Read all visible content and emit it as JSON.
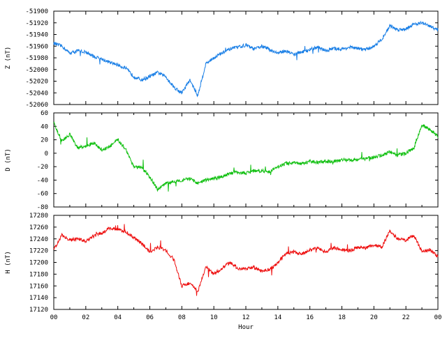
{
  "chart_data": [
    {
      "type": "line",
      "ylabel": "Z (nT)",
      "ylim": [
        -52060,
        -51900
      ],
      "yticks": [
        "-51900",
        "-51920",
        "-51940",
        "-51960",
        "-51980",
        "-52000",
        "-52020",
        "-52040",
        "-52060"
      ],
      "color": "#1a7fe6",
      "series": [
        {
          "x": [
            0,
            0.5,
            1,
            1.5,
            2,
            2.5,
            3,
            3.5,
            4,
            4.5,
            5,
            5.5,
            6,
            6.5,
            7,
            7.5,
            8,
            8.5,
            9,
            9.5,
            10,
            10.5,
            11,
            11.5,
            12,
            12.5,
            13,
            13.5,
            14,
            14.5,
            15,
            15.5,
            16,
            16.5,
            17,
            17.5,
            18,
            18.5,
            19,
            19.5,
            20,
            20.5,
            21,
            21.5,
            22,
            22.5,
            23,
            23.5,
            24
          ],
          "values": [
            -51955,
            -51960,
            -51972,
            -51968,
            -51970,
            -51978,
            -51982,
            -51988,
            -51992,
            -51998,
            -52012,
            -52018,
            -52012,
            -52005,
            -52012,
            -52030,
            -52040,
            -52018,
            -52045,
            -51990,
            -51980,
            -51972,
            -51965,
            -51962,
            -51958,
            -51965,
            -51960,
            -51966,
            -51972,
            -51968,
            -51974,
            -51970,
            -51966,
            -51962,
            -51968,
            -51964,
            -51965,
            -51962,
            -51964,
            -51966,
            -51960,
            -51948,
            -51925,
            -51932,
            -51930,
            -51922,
            -51920,
            -51926,
            -51932
          ]
        }
      ]
    },
    {
      "type": "line",
      "ylabel": "D (nT)",
      "ylim": [
        -80,
        60
      ],
      "yticks": [
        "60",
        "40",
        "20",
        "0",
        "-20",
        "-40",
        "-60",
        "-80"
      ],
      "color": "#12c012",
      "series": [
        {
          "x": [
            0,
            0.5,
            1,
            1.5,
            2,
            2.5,
            3,
            3.5,
            4,
            4.5,
            5,
            5.5,
            6,
            6.5,
            7,
            7.5,
            8,
            8.5,
            9,
            9.5,
            10,
            10.5,
            11,
            11.5,
            12,
            12.5,
            13,
            13.5,
            14,
            14.5,
            15,
            15.5,
            16,
            16.5,
            17,
            17.5,
            18,
            18.5,
            19,
            19.5,
            20,
            20.5,
            21,
            21.5,
            22,
            22.5,
            23,
            23.5,
            24
          ],
          "values": [
            45,
            18,
            28,
            8,
            10,
            15,
            5,
            10,
            20,
            6,
            -20,
            -22,
            -35,
            -55,
            -45,
            -42,
            -40,
            -38,
            -45,
            -40,
            -38,
            -35,
            -30,
            -28,
            -30,
            -26,
            -26,
            -28,
            -20,
            -15,
            -14,
            -16,
            -12,
            -14,
            -12,
            -12,
            -10,
            -10,
            -9,
            -8,
            -6,
            -3,
            2,
            -3,
            0,
            8,
            42,
            35,
            25
          ]
        }
      ]
    },
    {
      "type": "line",
      "ylabel": "H (nT)",
      "xlabel": "Hour",
      "ylim": [
        17120,
        17280
      ],
      "yticks": [
        "17280",
        "17260",
        "17240",
        "17220",
        "17200",
        "17180",
        "17160",
        "17140",
        "17120"
      ],
      "xticks": [
        "00",
        "02",
        "04",
        "06",
        "08",
        "10",
        "12",
        "14",
        "16",
        "18",
        "20",
        "22",
        "00"
      ],
      "color": "#ee1111",
      "series": [
        {
          "x": [
            0,
            0.5,
            1,
            1.5,
            2,
            2.5,
            3,
            3.5,
            4,
            4.5,
            5,
            5.5,
            6,
            6.5,
            7,
            7.5,
            8,
            8.5,
            9,
            9.5,
            10,
            10.5,
            11,
            11.5,
            12,
            12.5,
            13,
            13.5,
            14,
            14.5,
            15,
            15.5,
            16,
            16.5,
            17,
            17.5,
            18,
            18.5,
            19,
            19.5,
            20,
            20.5,
            21,
            21.5,
            22,
            22.5,
            23,
            23.5,
            24
          ],
          "values": [
            17222,
            17246,
            17238,
            17240,
            17236,
            17245,
            17250,
            17258,
            17256,
            17252,
            17242,
            17232,
            17218,
            17226,
            17220,
            17205,
            17160,
            17165,
            17150,
            17192,
            17180,
            17190,
            17200,
            17190,
            17188,
            17192,
            17185,
            17188,
            17200,
            17215,
            17218,
            17214,
            17222,
            17224,
            17218,
            17225,
            17222,
            17220,
            17226,
            17224,
            17230,
            17226,
            17254,
            17240,
            17238,
            17246,
            17218,
            17222,
            17210
          ]
        }
      ]
    }
  ]
}
